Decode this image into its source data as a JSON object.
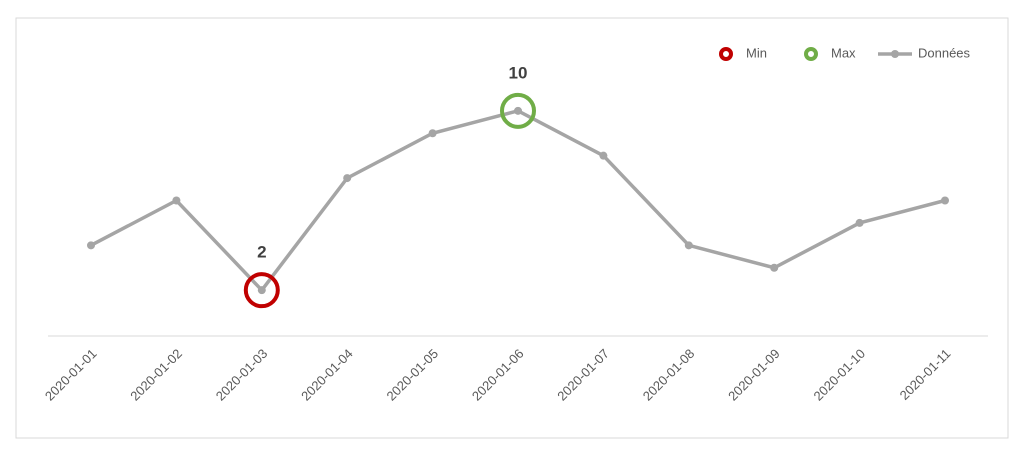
{
  "chart_data": {
    "type": "line",
    "x": [
      "2020-01-01",
      "2020-01-02",
      "2020-01-03",
      "2020-01-04",
      "2020-01-05",
      "2020-01-06",
      "2020-01-07",
      "2020-01-08",
      "2020-01-09",
      "2020-01-10",
      "2020-01-11"
    ],
    "series": [
      {
        "name": "Données",
        "color": "#a5a5a5",
        "values": [
          4,
          6,
          2,
          7,
          9,
          10,
          8,
          4,
          3,
          5,
          6
        ]
      },
      {
        "name": "Min",
        "color": "#c00000",
        "values": [
          null,
          null,
          2,
          null,
          null,
          null,
          null,
          null,
          null,
          null,
          null
        ]
      },
      {
        "name": "Max",
        "color": "#70ad47",
        "values": [
          null,
          null,
          null,
          null,
          null,
          10,
          null,
          null,
          null,
          null,
          null
        ]
      }
    ],
    "ylim": [
      0,
      12
    ],
    "grid": false,
    "legend": "top-right"
  }
}
